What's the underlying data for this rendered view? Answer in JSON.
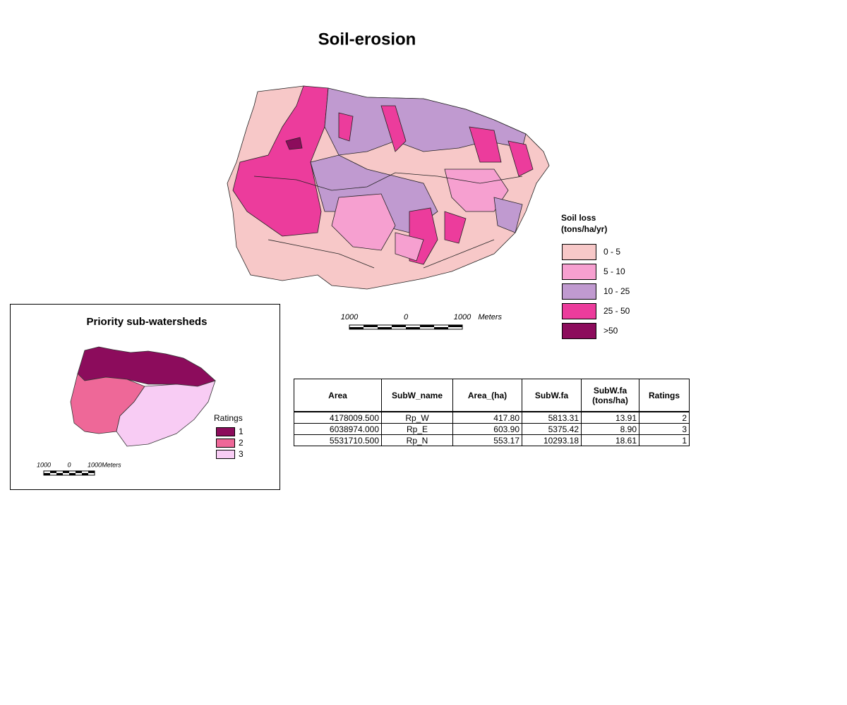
{
  "title": "Soil-erosion",
  "legend": {
    "title_lines": [
      "Soil loss",
      "(tons/ha/yr)"
    ],
    "items": [
      {
        "label": "0 - 5",
        "color": "#f7c8c8"
      },
      {
        "label": "5 - 10",
        "color": "#f6a0d0"
      },
      {
        "label": "10 - 25",
        "color": "#c09ad0"
      },
      {
        "label": "25 - 50",
        "color": "#ec3c9c"
      },
      {
        "label": ">50",
        "color": "#8c0c5c"
      }
    ]
  },
  "scale_bar": {
    "labels": [
      "1000",
      "0",
      "1000",
      "Meters"
    ]
  },
  "inset": {
    "title": "Priority sub-watersheds",
    "legend_title": "Ratings",
    "items": [
      {
        "label": "1",
        "color": "#8c0c5c"
      },
      {
        "label": "2",
        "color": "#ee6898"
      },
      {
        "label": "3",
        "color": "#f8ccf4"
      }
    ],
    "scale_bar": {
      "labels": [
        "1000",
        "0",
        "1000",
        "Meters"
      ]
    }
  },
  "table": {
    "headers": [
      [
        "Area"
      ],
      [
        "SubW_name"
      ],
      [
        "Area_(ha)"
      ],
      [
        "SubW.fa"
      ],
      [
        "SubW.fa",
        "(tons/ha)"
      ],
      [
        "Ratings"
      ]
    ],
    "rows": [
      [
        "4178009.500",
        "Rp_W",
        "417.80",
        "5813.31",
        "13.91",
        "2"
      ],
      [
        "6038974.000",
        "Rp_E",
        "603.90",
        "5375.42",
        "8.90",
        "3"
      ],
      [
        "5531710.500",
        "Rp_N",
        "553.17",
        "10293.18",
        "18.61",
        "1"
      ]
    ]
  }
}
